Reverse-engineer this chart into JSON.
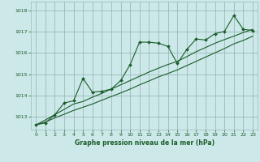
{
  "xlabel": "Graphe pression niveau de la mer (hPa)",
  "bg_color": "#cce8e8",
  "grid_color": "#99bbbb",
  "line_color": "#1a5c2a",
  "text_color": "#1a5c2a",
  "xlim": [
    -0.5,
    23.5
  ],
  "ylim": [
    1012.4,
    1018.4
  ],
  "yticks": [
    1013,
    1014,
    1015,
    1016,
    1017,
    1018
  ],
  "xticks": [
    0,
    1,
    2,
    3,
    4,
    5,
    6,
    7,
    8,
    9,
    10,
    11,
    12,
    13,
    14,
    15,
    16,
    17,
    18,
    19,
    20,
    21,
    22,
    23
  ],
  "x": [
    0,
    1,
    2,
    3,
    4,
    5,
    6,
    7,
    8,
    9,
    10,
    11,
    12,
    13,
    14,
    15,
    16,
    17,
    18,
    19,
    20,
    21,
    22,
    23
  ],
  "y_main": [
    1012.62,
    1012.72,
    1013.1,
    1013.65,
    1013.75,
    1014.8,
    1014.15,
    1014.2,
    1014.3,
    1014.7,
    1015.45,
    1016.5,
    1016.5,
    1016.45,
    1016.3,
    1015.5,
    1016.15,
    1016.65,
    1016.6,
    1016.9,
    1017.0,
    1017.75,
    1017.1,
    1017.05
  ],
  "y_trend1": [
    1012.62,
    1012.85,
    1013.1,
    1013.35,
    1013.6,
    1013.72,
    1013.92,
    1014.1,
    1014.3,
    1014.5,
    1014.7,
    1014.9,
    1015.1,
    1015.28,
    1015.45,
    1015.6,
    1015.82,
    1016.05,
    1016.25,
    1016.45,
    1016.62,
    1016.78,
    1016.95,
    1017.1
  ],
  "y_trend2": [
    1012.62,
    1012.75,
    1012.95,
    1013.12,
    1013.3,
    1013.45,
    1013.6,
    1013.78,
    1013.95,
    1014.12,
    1014.3,
    1014.5,
    1014.68,
    1014.87,
    1015.03,
    1015.2,
    1015.4,
    1015.6,
    1015.8,
    1016.0,
    1016.2,
    1016.42,
    1016.58,
    1016.78
  ]
}
